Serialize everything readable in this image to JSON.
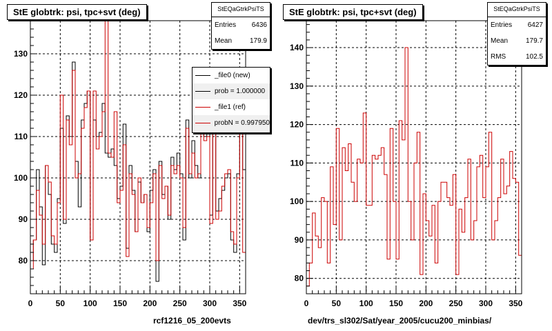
{
  "chart_data": [
    {
      "type": "line",
      "title": "StE globtrk: psi, tpc+svt (deg)",
      "xlabel": "rcf1216_05_200evts",
      "ylabel": "",
      "xlim": [
        0,
        360
      ],
      "ylim": [
        72,
        138
      ],
      "xticks": [
        0,
        50,
        100,
        150,
        200,
        250,
        300,
        350
      ],
      "yticks": [
        80,
        90,
        100,
        110,
        120,
        130
      ],
      "grid": true,
      "legend_placement": "top-right",
      "stats": {
        "title": "StEQaGtrkPsiTS",
        "rows": [
          {
            "label": "Entries",
            "value": "6436"
          },
          {
            "label": "Mean",
            "value": "179.9"
          }
        ]
      },
      "legend": [
        {
          "label": "_file0 (new)",
          "color": "#000000"
        },
        {
          "label": "prob = 1.000000",
          "color": "#000000"
        },
        {
          "label": "_file1 (ref)",
          "color": "#cc0000"
        },
        {
          "label": "probN = 0.997950",
          "color": "#cc0000"
        }
      ],
      "series": [
        {
          "name": "_file0 (new)",
          "color": "#000000",
          "values": [
            80,
            85,
            102,
            93,
            79,
            103,
            96,
            84,
            82,
            95,
            112,
            89,
            115,
            110,
            128,
            104,
            93,
            114,
            118,
            121,
            85,
            114,
            110,
            111,
            118,
            106,
            105,
            107,
            103,
            95,
            98,
            113,
            83,
            103,
            97,
            87,
            99,
            94,
            96,
            87,
            97,
            102,
            75,
            104,
            96,
            98,
            90,
            105,
            102,
            106,
            101,
            85,
            114,
            100,
            109,
            103,
            100,
            113,
            110,
            120,
            91,
            111,
            92,
            95,
            97,
            100,
            101,
            85,
            82,
            101,
            118,
            102
          ]
        },
        {
          "name": "_file1 (ref)",
          "color": "#cc0000",
          "values": [
            78,
            85,
            97,
            91,
            84,
            103,
            99,
            86,
            84,
            94,
            120,
            90,
            114,
            108,
            126,
            100,
            101,
            112,
            117,
            121,
            85,
            121,
            107,
            110,
            116,
            138,
            106,
            105,
            116,
            94,
            97,
            108,
            81,
            101,
            96,
            87,
            100,
            94,
            96,
            88,
            94,
            101,
            80,
            103,
            95,
            98,
            91,
            103,
            101,
            103,
            100,
            88,
            112,
            101,
            106,
            100,
            101,
            112,
            109,
            110,
            89,
            119,
            90,
            92,
            98,
            101,
            102,
            87,
            84,
            100,
            113,
            82
          ]
        }
      ]
    },
    {
      "type": "line",
      "title": "StE globtrk: psi, tpc+svt (deg)",
      "xlabel": "dev/trs_sl302/Sat/year_2005/cucu200_minbias/",
      "ylabel": "",
      "xlim": [
        0,
        360
      ],
      "ylim": [
        76,
        147
      ],
      "xticks": [
        0,
        50,
        100,
        150,
        200,
        250,
        300,
        350
      ],
      "yticks": [
        80,
        90,
        100,
        110,
        120,
        130,
        140
      ],
      "grid": true,
      "stats": {
        "title": "StEQaGtrkPsiTS",
        "rows": [
          {
            "label": "Entries",
            "value": "6427"
          },
          {
            "label": "Mean",
            "value": "179.7"
          },
          {
            "label": "RMS",
            "value": "102.5"
          }
        ]
      },
      "series": [
        {
          "name": "",
          "color": "#cc0000",
          "values": [
            78,
            84,
            97,
            91,
            88,
            101,
            100,
            84,
            109,
            94,
            119,
            90,
            114,
            108,
            115,
            105,
            100,
            111,
            110,
            123,
            99,
            99,
            112,
            111,
            112,
            114,
            107,
            85,
            119,
            100,
            85,
            121,
            116,
            140,
            100,
            90,
            110,
            118,
            81,
            102,
            95,
            91,
            99,
            84,
            100,
            105,
            105,
            101,
            99,
            107,
            81,
            98,
            92,
            101,
            111,
            90,
            95,
            109,
            112,
            101,
            109,
            118,
            90,
            95,
            101,
            111,
            102,
            104,
            113,
            106,
            105,
            86
          ]
        }
      ]
    }
  ]
}
